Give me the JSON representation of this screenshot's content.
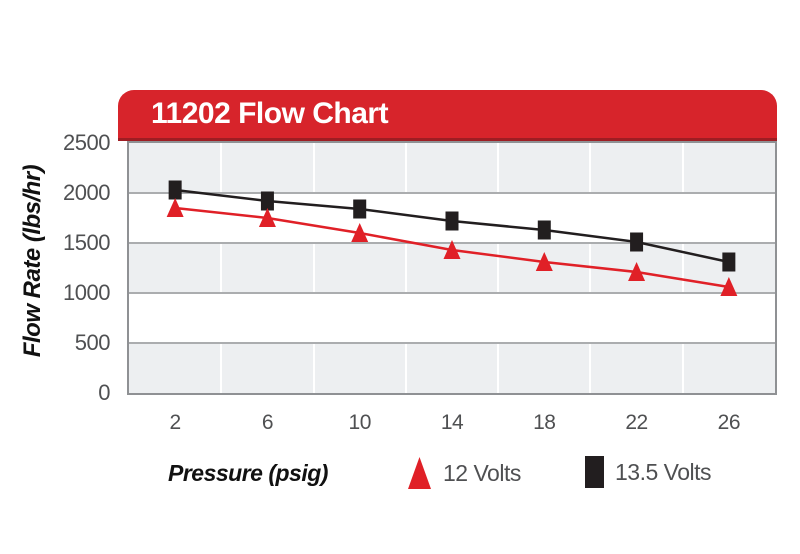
{
  "title": "11202 Flow Chart",
  "y_axis": {
    "title": "Flow Rate (lbs/hr)",
    "ticks": [
      "2500",
      "2000",
      "1500",
      "1000",
      "500",
      "0"
    ]
  },
  "x_axis": {
    "title": "Pressure (psig)",
    "ticks": [
      "2",
      "6",
      "10",
      "14",
      "18",
      "22",
      "26"
    ]
  },
  "legend": {
    "items": [
      {
        "label": "12 Volts",
        "marker": "triangle-up",
        "color": "#e02027"
      },
      {
        "label": "13.5 Volts",
        "marker": "square",
        "color": "#221e1f"
      }
    ]
  },
  "colors": {
    "banner_red": "#d7242b",
    "banner_edge": "#9e1d23",
    "series_red": "#e02027",
    "series_black": "#221e1f",
    "band_gray": "#edeff1",
    "band_white": "#ffffff",
    "h_gridline": "#abadaf",
    "v_gridline": "#ffffff",
    "frame": "#8f9194",
    "tick_text": "#4f5052",
    "axis_title_text": "#111111",
    "title_text": "#ffffff"
  },
  "chart_data": {
    "type": "line",
    "title": "11202 Flow Chart",
    "xlabel": "Pressure (psig)",
    "ylabel": "Flow Rate (lbs/hr)",
    "x": [
      2,
      6,
      10,
      14,
      18,
      22,
      26
    ],
    "series": [
      {
        "name": "13.5 Volts",
        "color": "#221e1f",
        "marker": "square",
        "values": [
          2030,
          1920,
          1840,
          1720,
          1630,
          1510,
          1310
        ]
      },
      {
        "name": "12 Volts",
        "color": "#e02027",
        "marker": "triangle-up",
        "values": [
          1850,
          1750,
          1600,
          1430,
          1310,
          1210,
          1060
        ]
      }
    ],
    "ylim": [
      0,
      2500
    ],
    "ytick_step": 500,
    "x_is_categorical": true,
    "grid": "alternating gray/white horizontal bands every 500; white vertical lines at category boundaries",
    "legend_position": "bottom"
  }
}
